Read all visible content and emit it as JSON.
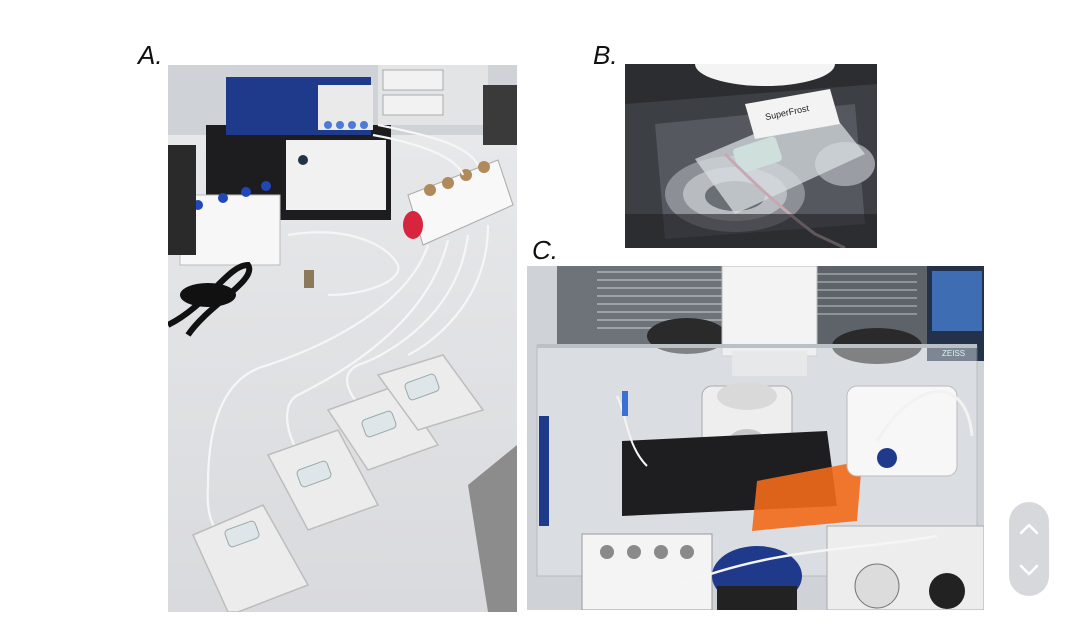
{
  "labels": {
    "a": "A.",
    "b": "B.",
    "c": "C."
  },
  "photos": {
    "a": {
      "description_icon": "lab-bench-photo"
    },
    "b": {
      "slide_text": "SuperFrost"
    },
    "c": {
      "screen_text": "ZEISS"
    }
  },
  "scroll": {
    "up_icon": "chevron-up-icon",
    "down_icon": "chevron-down-icon"
  },
  "colors": {
    "background": "#ffffff",
    "widget": "#d6d8db",
    "orange_filter": "#f26a1b",
    "blue_device": "#1f3a8a"
  }
}
